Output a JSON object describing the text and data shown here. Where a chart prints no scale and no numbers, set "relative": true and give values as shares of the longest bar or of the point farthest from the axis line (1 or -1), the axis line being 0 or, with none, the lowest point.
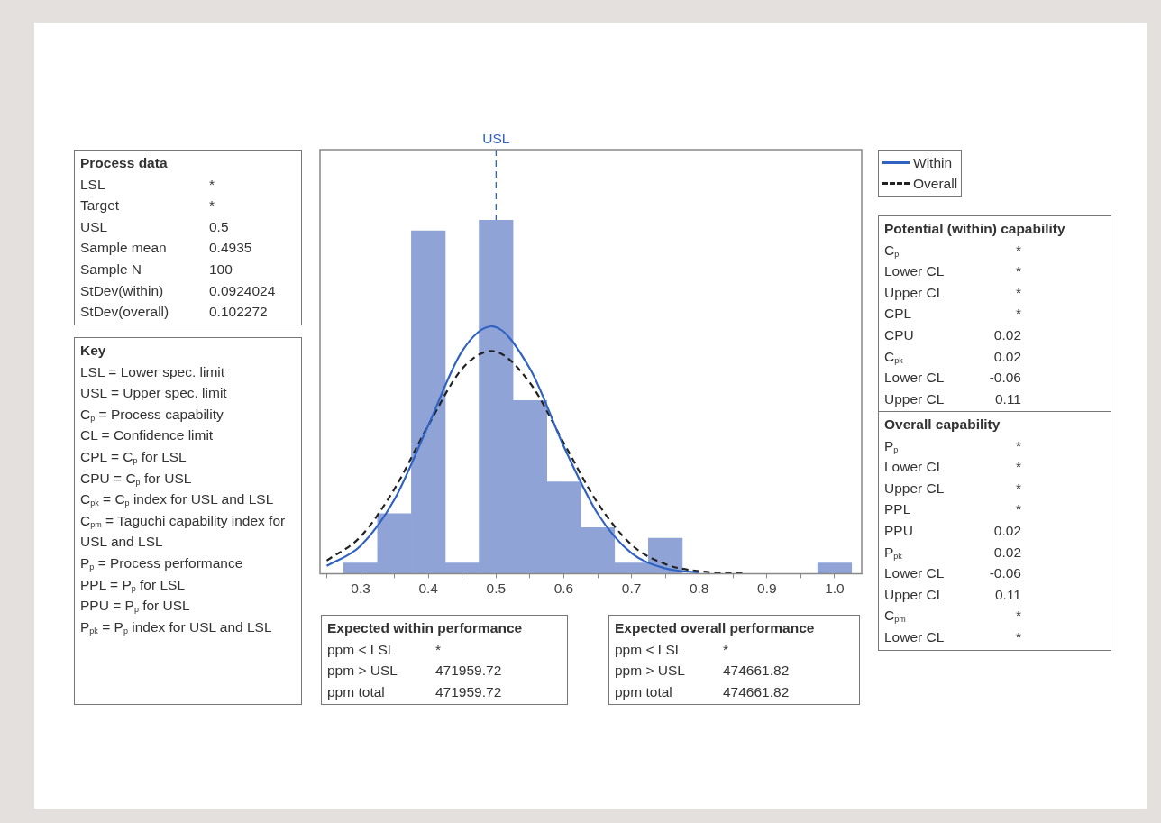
{
  "chart_data": {
    "type": "histogram",
    "relative": true,
    "tick_labels": "x",
    "marker": "none",
    "legend": "top right",
    "xlim": [
      0.24,
      1.04
    ],
    "xticks": [
      {
        "value": 0.25,
        "label": null
      },
      0.3,
      {
        "value": 0.35,
        "label": null
      },
      0.4,
      {
        "value": 0.45,
        "label": null
      },
      0.5,
      {
        "value": 0.55,
        "label": null
      },
      0.6,
      {
        "value": 0.65,
        "label": null
      },
      0.7,
      {
        "value": 0.75,
        "label": null
      },
      0.8,
      {
        "value": 0.85,
        "label": null
      },
      0.9,
      {
        "value": 0.95,
        "label": null
      },
      {
        "value": 1.0,
        "label": "1.0"
      }
    ],
    "series": [
      {
        "color": "#8fa3d6",
        "bins": [
          0.275,
          0.325,
          0.375,
          0.425,
          0.475,
          0.525,
          0.575,
          0.625,
          0.675,
          0.725,
          0.775,
          0.825,
          0.875,
          0.925,
          0.975,
          1.025
        ],
        "values": [
          0.03,
          0.17,
          0.97,
          0.03,
          1,
          0.49,
          0.26,
          0.13,
          0.03,
          0.1,
          0,
          0,
          0,
          0,
          0.03
        ]
      },
      {
        "type": "line",
        "name": "Within",
        "color": "#2f62c2",
        "line_style": "solid",
        "x": [
          0.25,
          0.3,
          0.35,
          0.4,
          0.45,
          0.4935,
          0.55,
          0.6,
          0.65,
          0.7,
          0.75,
          0.8
        ],
        "values": [
          0.022,
          0.079,
          0.21,
          0.42,
          0.63,
          0.7,
          0.58,
          0.36,
          0.17,
          0.058,
          0.015,
          0.003
        ]
      },
      {
        "type": "line",
        "name": "Overall",
        "color": "#222222",
        "line_style": "dashed",
        "x": [
          0.25,
          0.3,
          0.35,
          0.4,
          0.45,
          0.4935,
          0.55,
          0.6,
          0.65,
          0.7,
          0.75,
          0.8,
          0.87
        ],
        "values": [
          0.037,
          0.105,
          0.24,
          0.42,
          0.58,
          0.63,
          0.54,
          0.37,
          0.2,
          0.082,
          0.027,
          0.007,
          0.001
        ]
      }
    ],
    "ref_lines": [
      {
        "axis": "x",
        "value": 0.5,
        "label": "USL",
        "color": "#2f62c2",
        "line_style": "dashed"
      }
    ],
    "annotations": [
      "Process data\nLSL\t*\nTarget\t*\nUSL\t0.5\nSample mean\t0.4935\nSample N\t100\nStDev(within)\t0.0924024\nStDev(overall)\t0.102272",
      "Key\nLSL = Lower spec. limit\nUSL = Upper spec. limit\nC$_{p}$ = Process capability\nCL = Confidence limit\nCPL = C$_{p}$ for LSL\nCPU = C$_{p}$ for USL\nC$_{pk}$ = C$_{p}$ index for USL and LSL\nC$_{pm}$ = Taguchi capability index for USL and LSL\nP$_{p}$ = Process performance\nPPL = P$_{p}$ for LSL\nPPU = P$_{p}$ for USL\nP$_{pk}$ = P$_{p}$ index for USL and LSL",
      "Potential (within) capability\nC$_{p}$\t*\nLower CL\t*\nUpper CL\t*\nCPL\t*\nCPU\t0.02\nC$_{pk}$\t0.02\nLower CL\t-0.06\nUpper CL\t0.11",
      "Overall capability\nP$_{p}$\t*\nLower CL\t*\nUpper CL\t*\nPPL\t*\nPPU\t0.02\nP$_{pk}$\t0.02\nLower CL\t-0.06\nUpper CL\t0.11\nC$_{pm}$\t*\nLower CL\t*",
      "Expected within performance\nppm < LSL\t*\nppm > USL\t471959.72\nppm total\t471959.72",
      "Expected overall performance\nppm < LSL\t*\nppm > USL\t474661.82\nppm total\t474661.82"
    ]
  }
}
